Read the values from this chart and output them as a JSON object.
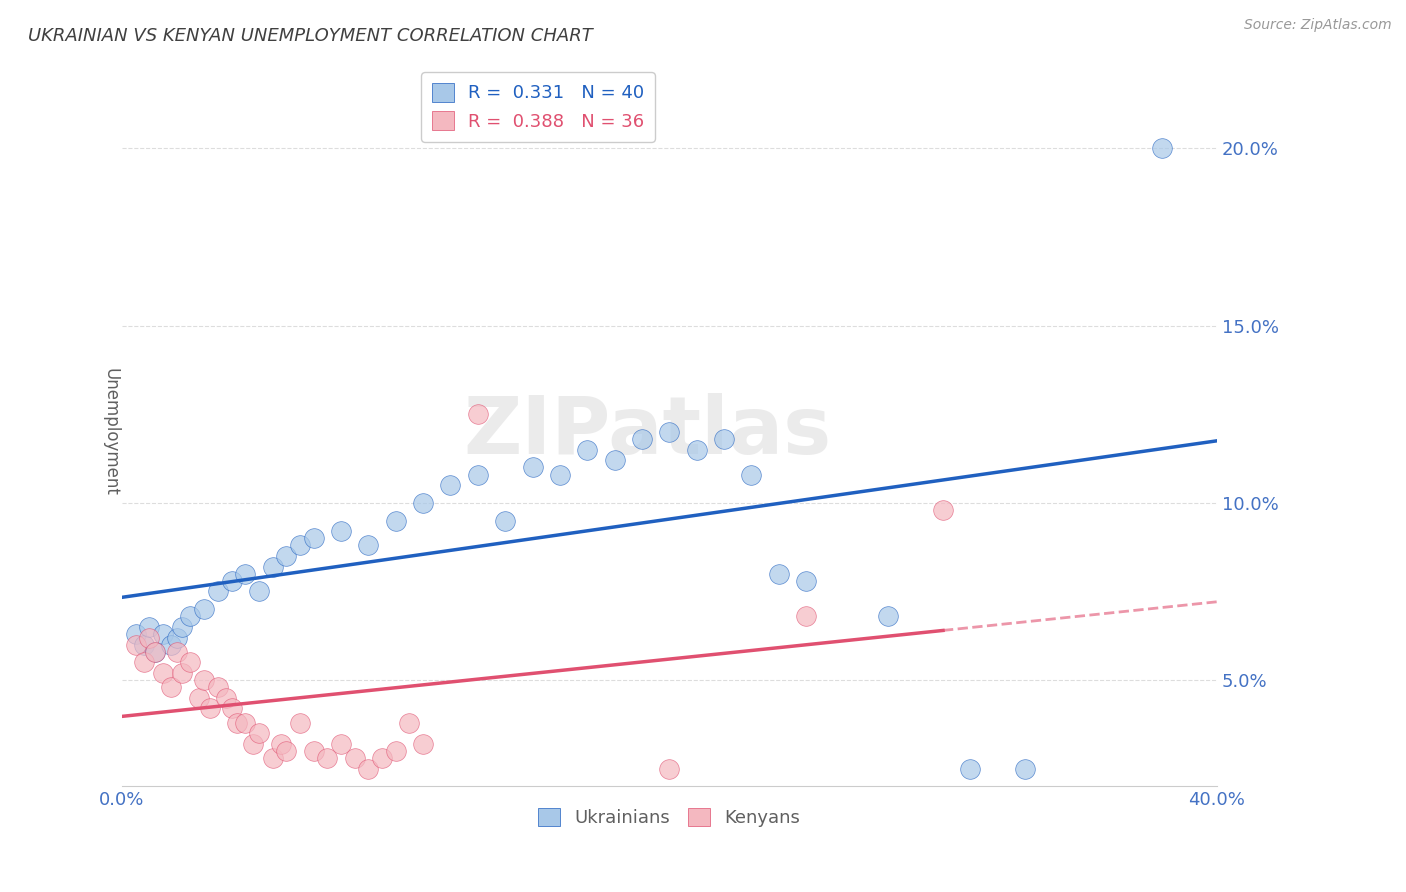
{
  "title": "UKRAINIAN VS KENYAN UNEMPLOYMENT CORRELATION CHART",
  "source_text": "Source: ZipAtlas.com",
  "watermark": "ZIPatlas",
  "ylabel": "Unemployment",
  "xlim": [
    0.0,
    0.4
  ],
  "ylim": [
    0.02,
    0.22
  ],
  "xticks": [
    0.0,
    0.1,
    0.2,
    0.3,
    0.4
  ],
  "xticklabels": [
    "0.0%",
    "",
    "",
    "",
    "40.0%"
  ],
  "yticks": [
    0.05,
    0.1,
    0.15,
    0.2
  ],
  "yticklabels": [
    "5.0%",
    "10.0%",
    "15.0%",
    "20.0%"
  ],
  "ukr_R": 0.331,
  "ukr_N": 40,
  "ken_R": 0.388,
  "ken_N": 36,
  "ukr_color": "#a8c8e8",
  "ken_color": "#f4b8c0",
  "ukr_line_color": "#2060c0",
  "ken_line_color": "#e05070",
  "ukr_scatter": [
    [
      0.005,
      0.063
    ],
    [
      0.008,
      0.06
    ],
    [
      0.01,
      0.065
    ],
    [
      0.012,
      0.058
    ],
    [
      0.015,
      0.063
    ],
    [
      0.018,
      0.06
    ],
    [
      0.02,
      0.062
    ],
    [
      0.022,
      0.065
    ],
    [
      0.025,
      0.068
    ],
    [
      0.03,
      0.07
    ],
    [
      0.035,
      0.075
    ],
    [
      0.04,
      0.078
    ],
    [
      0.045,
      0.08
    ],
    [
      0.05,
      0.075
    ],
    [
      0.055,
      0.082
    ],
    [
      0.06,
      0.085
    ],
    [
      0.065,
      0.088
    ],
    [
      0.07,
      0.09
    ],
    [
      0.08,
      0.092
    ],
    [
      0.09,
      0.088
    ],
    [
      0.1,
      0.095
    ],
    [
      0.11,
      0.1
    ],
    [
      0.12,
      0.105
    ],
    [
      0.13,
      0.108
    ],
    [
      0.14,
      0.095
    ],
    [
      0.15,
      0.11
    ],
    [
      0.16,
      0.108
    ],
    [
      0.17,
      0.115
    ],
    [
      0.18,
      0.112
    ],
    [
      0.19,
      0.118
    ],
    [
      0.2,
      0.12
    ],
    [
      0.21,
      0.115
    ],
    [
      0.22,
      0.118
    ],
    [
      0.23,
      0.108
    ],
    [
      0.24,
      0.08
    ],
    [
      0.25,
      0.078
    ],
    [
      0.28,
      0.068
    ],
    [
      0.31,
      0.025
    ],
    [
      0.33,
      0.025
    ],
    [
      0.38,
      0.2
    ]
  ],
  "ken_scatter": [
    [
      0.005,
      0.06
    ],
    [
      0.008,
      0.055
    ],
    [
      0.01,
      0.062
    ],
    [
      0.012,
      0.058
    ],
    [
      0.015,
      0.052
    ],
    [
      0.018,
      0.048
    ],
    [
      0.02,
      0.058
    ],
    [
      0.022,
      0.052
    ],
    [
      0.025,
      0.055
    ],
    [
      0.028,
      0.045
    ],
    [
      0.03,
      0.05
    ],
    [
      0.032,
      0.042
    ],
    [
      0.035,
      0.048
    ],
    [
      0.038,
      0.045
    ],
    [
      0.04,
      0.042
    ],
    [
      0.042,
      0.038
    ],
    [
      0.045,
      0.038
    ],
    [
      0.048,
      0.032
    ],
    [
      0.05,
      0.035
    ],
    [
      0.055,
      0.028
    ],
    [
      0.058,
      0.032
    ],
    [
      0.06,
      0.03
    ],
    [
      0.065,
      0.038
    ],
    [
      0.07,
      0.03
    ],
    [
      0.075,
      0.028
    ],
    [
      0.08,
      0.032
    ],
    [
      0.085,
      0.028
    ],
    [
      0.09,
      0.025
    ],
    [
      0.095,
      0.028
    ],
    [
      0.1,
      0.03
    ],
    [
      0.105,
      0.038
    ],
    [
      0.11,
      0.032
    ],
    [
      0.13,
      0.125
    ],
    [
      0.2,
      0.025
    ],
    [
      0.25,
      0.068
    ],
    [
      0.3,
      0.098
    ]
  ],
  "background_color": "#ffffff",
  "grid_color": "#dddddd",
  "title_color": "#404040",
  "axis_label_color": "#606060",
  "tick_color": "#4472c4"
}
